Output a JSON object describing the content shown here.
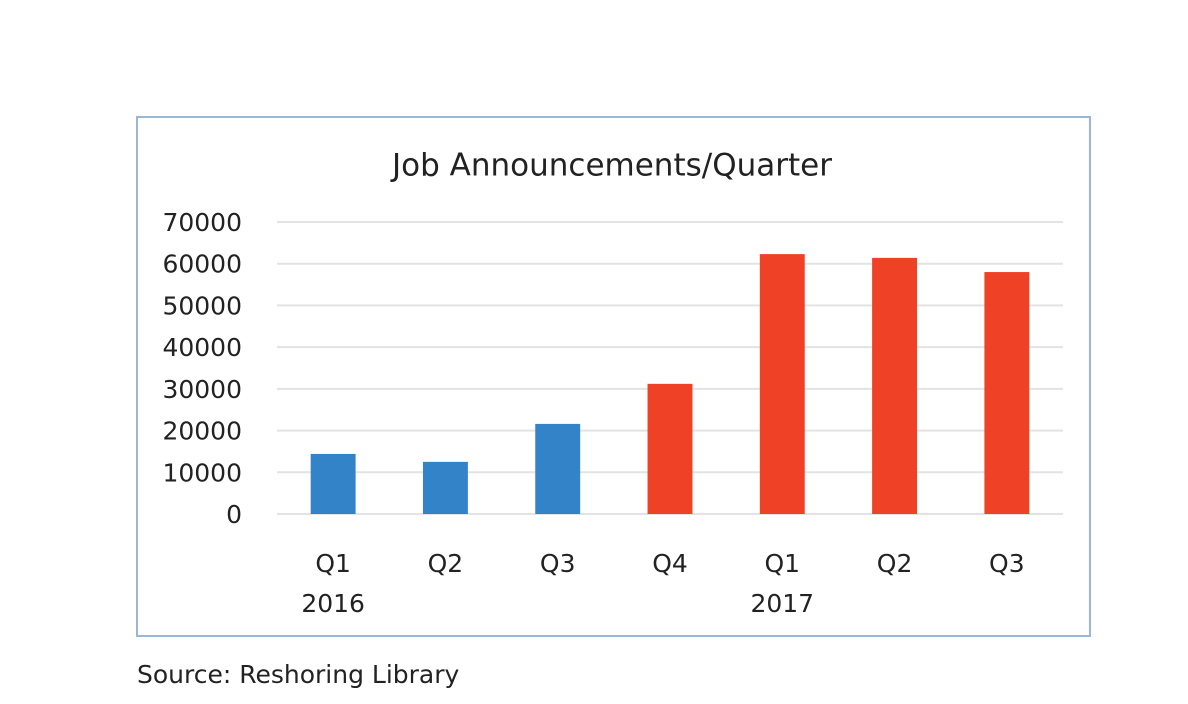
{
  "chart_data": {
    "type": "bar",
    "title": "Job Announcements/Quarter",
    "categories": [
      "Q1",
      "Q2",
      "Q3",
      "Q4",
      "Q1",
      "Q2",
      "Q3"
    ],
    "year_labels": [
      "2016",
      null,
      null,
      null,
      "2017",
      null,
      null
    ],
    "values": [
      14400,
      12500,
      21600,
      31200,
      62300,
      61400,
      58000
    ],
    "colors": [
      "#3283c8",
      "#3283c8",
      "#3283c8",
      "#ee4125",
      "#ee4125",
      "#ee4125",
      "#ee4125"
    ],
    "ylim": [
      0,
      70000
    ],
    "yticks": [
      0,
      10000,
      20000,
      30000,
      40000,
      50000,
      60000,
      70000
    ],
    "grid": true
  },
  "source": "Source: Reshoring Library"
}
